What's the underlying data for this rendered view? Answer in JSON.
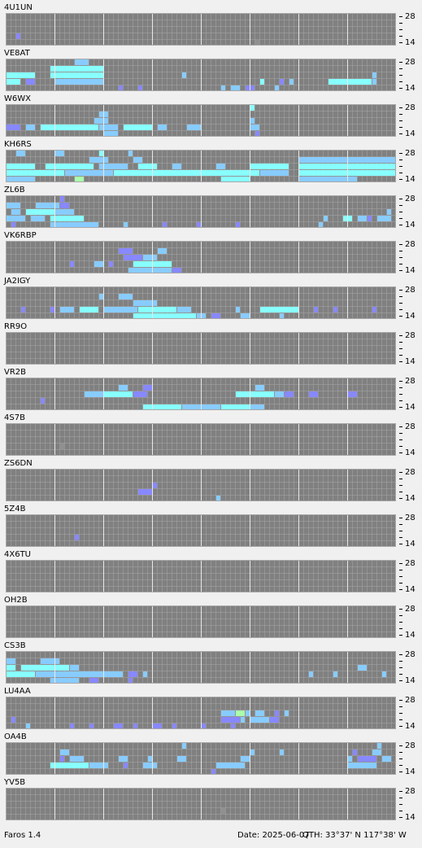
{
  "app": {
    "name": "Faros 1.4",
    "date": "Date: 2025-06-07",
    "qth": "QTH: 33°37' N  117°38' W"
  },
  "band_labels": {
    "top": "28",
    "bottom": "14"
  },
  "level_colors": [
    "#909090",
    "#8888ff",
    "#88ccff",
    "#88ffff",
    "#aaffaa"
  ],
  "stations": [
    {
      "name": "4U1UN",
      "runs": [
        [
          3,
          2,
          1,
          2
        ],
        [
          4,
          51,
          1,
          1
        ]
      ]
    },
    {
      "name": "VE8AT",
      "runs": [
        [
          0,
          14,
          3,
          3
        ],
        [
          1,
          9,
          11,
          4
        ],
        [
          2,
          0,
          6,
          4
        ],
        [
          2,
          9,
          11,
          4
        ],
        [
          3,
          0,
          3,
          4
        ],
        [
          3,
          4,
          2,
          2
        ],
        [
          3,
          10,
          10,
          3
        ],
        [
          4,
          23,
          1,
          2
        ],
        [
          4,
          27,
          1,
          2
        ],
        [
          2,
          36,
          1,
          3
        ],
        [
          4,
          44,
          1,
          3
        ],
        [
          4,
          46,
          2,
          3
        ],
        [
          4,
          49,
          2,
          2
        ],
        [
          3,
          52,
          1,
          4
        ],
        [
          4,
          55,
          1,
          3
        ],
        [
          3,
          56,
          1,
          2
        ],
        [
          3,
          58,
          1,
          3
        ],
        [
          3,
          66,
          9,
          4
        ],
        [
          2,
          75,
          1,
          3
        ],
        [
          3,
          75,
          1,
          3
        ]
      ]
    },
    {
      "name": "W6WX",
      "runs": [
        [
          0,
          50,
          1,
          4
        ],
        [
          1,
          19,
          2,
          3
        ],
        [
          2,
          18,
          3,
          3
        ],
        [
          2,
          50,
          1,
          3
        ],
        [
          3,
          0,
          3,
          2
        ],
        [
          3,
          4,
          2,
          3
        ],
        [
          3,
          7,
          12,
          4
        ],
        [
          3,
          19,
          4,
          3
        ],
        [
          3,
          24,
          6,
          4
        ],
        [
          3,
          31,
          2,
          3
        ],
        [
          3,
          37,
          3,
          3
        ],
        [
          3,
          50,
          2,
          3
        ],
        [
          4,
          20,
          3,
          3
        ],
        [
          4,
          51,
          1,
          2
        ]
      ]
    },
    {
      "name": "KH6RS",
      "runs": [
        [
          0,
          2,
          2,
          3
        ],
        [
          0,
          10,
          2,
          3
        ],
        [
          0,
          19,
          1,
          4
        ],
        [
          0,
          25,
          1,
          3
        ],
        [
          1,
          17,
          4,
          3
        ],
        [
          1,
          26,
          2,
          3
        ],
        [
          1,
          60,
          20,
          3
        ],
        [
          2,
          0,
          6,
          4
        ],
        [
          2,
          8,
          10,
          4
        ],
        [
          2,
          19,
          6,
          3
        ],
        [
          2,
          27,
          4,
          4
        ],
        [
          2,
          34,
          2,
          3
        ],
        [
          2,
          43,
          2,
          3
        ],
        [
          2,
          50,
          8,
          4
        ],
        [
          2,
          60,
          20,
          4
        ],
        [
          3,
          0,
          12,
          4
        ],
        [
          3,
          12,
          10,
          3
        ],
        [
          3,
          22,
          8,
          4
        ],
        [
          3,
          30,
          10,
          4
        ],
        [
          3,
          40,
          12,
          4
        ],
        [
          3,
          52,
          6,
          3
        ],
        [
          3,
          60,
          20,
          4
        ],
        [
          4,
          0,
          6,
          3
        ],
        [
          4,
          14,
          2,
          5
        ],
        [
          4,
          44,
          6,
          4
        ],
        [
          4,
          60,
          12,
          3
        ]
      ]
    },
    {
      "name": "ZL6B",
      "runs": [
        [
          0,
          11,
          1,
          2
        ],
        [
          1,
          0,
          3,
          3
        ],
        [
          1,
          6,
          5,
          3
        ],
        [
          1,
          11,
          2,
          2
        ],
        [
          2,
          1,
          2,
          3
        ],
        [
          2,
          4,
          6,
          4
        ],
        [
          2,
          10,
          4,
          3
        ],
        [
          2,
          78,
          1,
          3
        ],
        [
          3,
          0,
          4,
          3
        ],
        [
          3,
          5,
          3,
          3
        ],
        [
          3,
          9,
          7,
          4
        ],
        [
          3,
          65,
          1,
          3
        ],
        [
          3,
          69,
          2,
          4
        ],
        [
          3,
          72,
          2,
          3
        ],
        [
          3,
          74,
          1,
          2
        ],
        [
          3,
          76,
          3,
          3
        ],
        [
          4,
          1,
          1,
          2
        ],
        [
          4,
          9,
          10,
          3
        ],
        [
          4,
          24,
          1,
          3
        ],
        [
          4,
          32,
          1,
          2
        ],
        [
          4,
          39,
          1,
          2
        ],
        [
          4,
          47,
          1,
          2
        ],
        [
          4,
          64,
          1,
          3
        ]
      ]
    },
    {
      "name": "VK6RBP",
      "runs": [
        [
          1,
          23,
          3,
          2
        ],
        [
          1,
          31,
          2,
          3
        ],
        [
          2,
          24,
          4,
          2
        ],
        [
          2,
          28,
          3,
          3
        ],
        [
          3,
          13,
          1,
          2
        ],
        [
          3,
          18,
          2,
          3
        ],
        [
          3,
          21,
          1,
          2
        ],
        [
          3,
          26,
          8,
          4
        ],
        [
          4,
          25,
          9,
          3
        ],
        [
          4,
          34,
          2,
          2
        ]
      ]
    },
    {
      "name": "JA2IGY",
      "runs": [
        [
          1,
          19,
          1,
          3
        ],
        [
          1,
          23,
          3,
          3
        ],
        [
          2,
          26,
          5,
          3
        ],
        [
          3,
          3,
          1,
          2
        ],
        [
          3,
          9,
          1,
          2
        ],
        [
          3,
          11,
          3,
          3
        ],
        [
          3,
          15,
          4,
          4
        ],
        [
          3,
          20,
          7,
          3
        ],
        [
          3,
          27,
          8,
          4
        ],
        [
          3,
          35,
          3,
          3
        ],
        [
          3,
          47,
          1,
          3
        ],
        [
          3,
          52,
          8,
          4
        ],
        [
          3,
          63,
          1,
          2
        ],
        [
          3,
          67,
          1,
          2
        ],
        [
          3,
          75,
          1,
          2
        ],
        [
          4,
          26,
          13,
          4
        ],
        [
          4,
          39,
          2,
          3
        ],
        [
          4,
          42,
          2,
          2
        ],
        [
          4,
          48,
          2,
          3
        ],
        [
          4,
          56,
          1,
          3
        ]
      ]
    },
    {
      "name": "RR9O",
      "runs": []
    },
    {
      "name": "VR2B",
      "runs": [
        [
          1,
          23,
          2,
          3
        ],
        [
          1,
          28,
          2,
          2
        ],
        [
          1,
          51,
          2,
          3
        ],
        [
          2,
          16,
          4,
          3
        ],
        [
          2,
          20,
          6,
          4
        ],
        [
          2,
          26,
          3,
          2
        ],
        [
          2,
          47,
          8,
          4
        ],
        [
          2,
          55,
          2,
          3
        ],
        [
          2,
          57,
          2,
          2
        ],
        [
          2,
          62,
          2,
          2
        ],
        [
          2,
          70,
          2,
          2
        ],
        [
          3,
          7,
          1,
          2
        ],
        [
          4,
          28,
          8,
          4
        ],
        [
          4,
          36,
          8,
          3
        ],
        [
          4,
          44,
          6,
          4
        ],
        [
          4,
          50,
          3,
          3
        ]
      ]
    },
    {
      "name": "4S7B",
      "runs": [
        [
          3,
          11,
          1,
          1
        ]
      ]
    },
    {
      "name": "ZS6DN",
      "runs": [
        [
          2,
          30,
          1,
          2
        ],
        [
          3,
          27,
          3,
          2
        ],
        [
          4,
          43,
          1,
          3
        ]
      ]
    },
    {
      "name": "5Z4B",
      "runs": [
        [
          3,
          14,
          1,
          2
        ]
      ]
    },
    {
      "name": "4X6TU",
      "runs": []
    },
    {
      "name": "OH2B",
      "runs": []
    },
    {
      "name": "CS3B",
      "runs": [
        [
          1,
          0,
          2,
          3
        ],
        [
          1,
          7,
          4,
          3
        ],
        [
          2,
          0,
          2,
          4
        ],
        [
          2,
          3,
          10,
          4
        ],
        [
          2,
          13,
          2,
          3
        ],
        [
          3,
          0,
          6,
          4
        ],
        [
          3,
          6,
          14,
          3
        ],
        [
          3,
          20,
          4,
          3
        ],
        [
          3,
          25,
          2,
          2
        ],
        [
          3,
          28,
          1,
          3
        ],
        [
          3,
          62,
          1,
          3
        ],
        [
          3,
          67,
          1,
          3
        ],
        [
          3,
          77,
          1,
          3
        ],
        [
          4,
          9,
          6,
          3
        ],
        [
          4,
          17,
          2,
          2
        ],
        [
          4,
          25,
          1,
          2
        ],
        [
          2,
          72,
          2,
          3
        ]
      ]
    },
    {
      "name": "LU4AA",
      "runs": [
        [
          2,
          44,
          3,
          3
        ],
        [
          2,
          47,
          2,
          5
        ],
        [
          2,
          49,
          1,
          3
        ],
        [
          2,
          51,
          2,
          3
        ],
        [
          2,
          55,
          1,
          2
        ],
        [
          2,
          57,
          1,
          3
        ],
        [
          3,
          1,
          1,
          2
        ],
        [
          3,
          44,
          4,
          2
        ],
        [
          3,
          48,
          1,
          3
        ],
        [
          3,
          50,
          4,
          3
        ],
        [
          3,
          54,
          2,
          2
        ],
        [
          4,
          4,
          1,
          3
        ],
        [
          4,
          13,
          1,
          2
        ],
        [
          4,
          17,
          1,
          2
        ],
        [
          4,
          22,
          2,
          2
        ],
        [
          4,
          26,
          1,
          2
        ],
        [
          4,
          30,
          2,
          2
        ],
        [
          4,
          34,
          1,
          2
        ],
        [
          4,
          40,
          1,
          2
        ],
        [
          4,
          46,
          1,
          2
        ]
      ]
    },
    {
      "name": "OA4B",
      "runs": [
        [
          0,
          36,
          1,
          3
        ],
        [
          0,
          76,
          1,
          3
        ],
        [
          1,
          11,
          2,
          3
        ],
        [
          1,
          50,
          1,
          3
        ],
        [
          1,
          56,
          1,
          3
        ],
        [
          1,
          71,
          1,
          2
        ],
        [
          1,
          75,
          2,
          3
        ],
        [
          2,
          11,
          1,
          2
        ],
        [
          2,
          13,
          3,
          3
        ],
        [
          2,
          23,
          2,
          3
        ],
        [
          2,
          29,
          1,
          3
        ],
        [
          2,
          35,
          2,
          3
        ],
        [
          2,
          48,
          2,
          3
        ],
        [
          2,
          70,
          1,
          3
        ],
        [
          2,
          72,
          4,
          2
        ],
        [
          2,
          77,
          2,
          3
        ],
        [
          3,
          9,
          8,
          4
        ],
        [
          3,
          17,
          4,
          3
        ],
        [
          3,
          24,
          1,
          2
        ],
        [
          3,
          28,
          3,
          3
        ],
        [
          3,
          43,
          6,
          3
        ],
        [
          3,
          70,
          6,
          3
        ],
        [
          4,
          42,
          1,
          2
        ]
      ]
    },
    {
      "name": "YV5B",
      "runs": [
        [
          3,
          44,
          1,
          1
        ]
      ]
    }
  ]
}
